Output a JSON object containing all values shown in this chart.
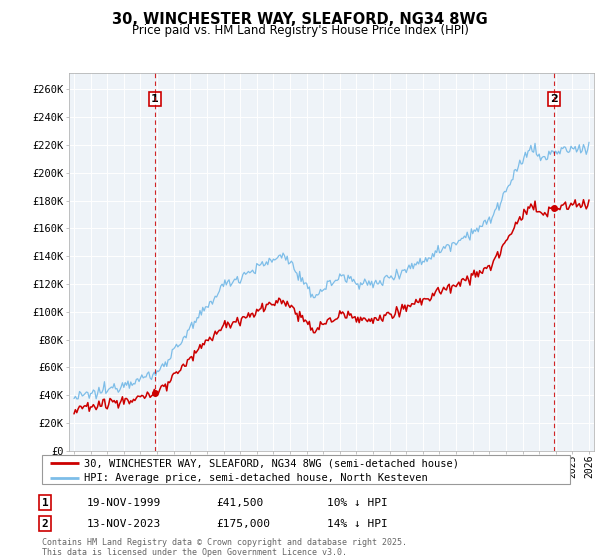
{
  "title": "30, WINCHESTER WAY, SLEAFORD, NG34 8WG",
  "subtitle": "Price paid vs. HM Land Registry's House Price Index (HPI)",
  "ylabel_ticks": [
    "£0",
    "£20K",
    "£40K",
    "£60K",
    "£80K",
    "£100K",
    "£120K",
    "£140K",
    "£160K",
    "£180K",
    "£200K",
    "£220K",
    "£240K",
    "£260K"
  ],
  "ytick_values": [
    0,
    20000,
    40000,
    60000,
    80000,
    100000,
    120000,
    140000,
    160000,
    180000,
    200000,
    220000,
    240000,
    260000
  ],
  "ylim": [
    0,
    272000
  ],
  "xlim_start": 1994.7,
  "xlim_end": 2026.3,
  "sale1_date": 1999.88,
  "sale1_price": 41500,
  "sale1_label": "1",
  "sale2_date": 2023.87,
  "sale2_price": 175000,
  "sale2_label": "2",
  "hpi_color": "#7dbde8",
  "price_color": "#cc0000",
  "annotation_color": "#cc0000",
  "legend_label_price": "30, WINCHESTER WAY, SLEAFORD, NG34 8WG (semi-detached house)",
  "legend_label_hpi": "HPI: Average price, semi-detached house, North Kesteven",
  "table_row1": [
    "1",
    "19-NOV-1999",
    "£41,500",
    "10% ↓ HPI"
  ],
  "table_row2": [
    "2",
    "13-NOV-2023",
    "£175,000",
    "14% ↓ HPI"
  ],
  "footnote": "Contains HM Land Registry data © Crown copyright and database right 2025.\nThis data is licensed under the Open Government Licence v3.0.",
  "background_color": "#ffffff",
  "plot_bg_color": "#eef3f8",
  "grid_color": "#ffffff"
}
